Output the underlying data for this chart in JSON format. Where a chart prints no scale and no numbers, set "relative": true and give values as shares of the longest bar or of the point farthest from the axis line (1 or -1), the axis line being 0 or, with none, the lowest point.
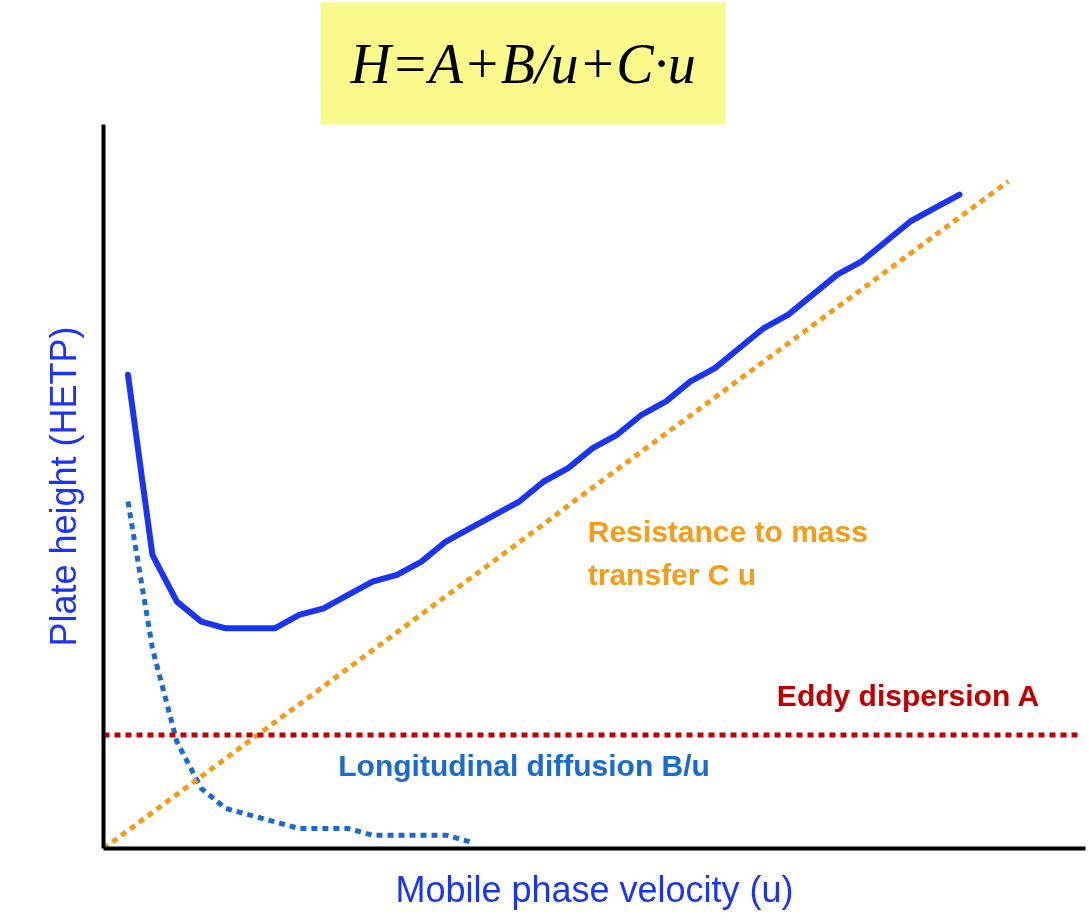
{
  "chart_data": {
    "type": "line",
    "title": "H=A+B/u+C·u",
    "xlabel": "Mobile phase velocity (u)",
    "ylabel": "Plate height (HETP)",
    "relative": true,
    "grid": false,
    "legend": false,
    "categories": [
      null,
      null,
      null,
      null,
      null,
      null,
      null,
      null,
      null,
      null,
      null,
      null,
      null,
      null,
      null,
      null,
      null,
      null,
      null,
      null,
      null,
      null,
      null,
      null,
      null,
      null,
      null,
      null,
      null,
      null,
      null,
      null,
      null,
      null,
      null,
      null,
      null,
      null,
      null,
      null,
      null
    ],
    "series": [
      {
        "color": "#1a35f0",
        "line_style": "solid",
        "values": [
          null,
          0.71,
          0.44,
          0.37,
          0.34,
          0.33,
          0.33,
          0.33,
          0.35,
          0.36,
          0.38,
          0.4,
          0.41,
          0.43,
          0.46,
          0.48,
          0.5,
          0.52,
          0.55,
          0.57,
          0.6,
          0.62,
          0.65,
          0.67,
          0.7,
          0.72,
          0.75,
          0.78,
          0.8,
          0.83,
          0.86,
          0.88,
          0.91,
          0.94,
          0.96,
          0.98,
          null,
          null,
          null,
          null,
          null
        ]
      },
      {
        "name": "Longitudinal diffusion B/u",
        "color": "#1a6bd0",
        "line_style": "dotted",
        "values": [
          null,
          0.52,
          0.3,
          0.16,
          0.09,
          0.06,
          0.05,
          0.04,
          0.03,
          0.03,
          0.03,
          0.02,
          0.02,
          0.02,
          0.02,
          0.01,
          null,
          null,
          null,
          null,
          null,
          null,
          null,
          null,
          null,
          null,
          null,
          null,
          null,
          null,
          null,
          null,
          null,
          null,
          null,
          null,
          null,
          null,
          null,
          null,
          null
        ]
      },
      {
        "name": "Resistance to mass transfer C u",
        "color": "#f59c18",
        "line_style": "dotted",
        "values": [
          0,
          0.027,
          0.054,
          0.081,
          0.108,
          0.135,
          0.162,
          0.189,
          0.216,
          0.243,
          0.27,
          0.297,
          0.324,
          0.351,
          0.378,
          0.405,
          0.432,
          0.459,
          0.486,
          0.514,
          0.541,
          0.568,
          0.595,
          0.622,
          0.649,
          0.676,
          0.703,
          0.73,
          0.757,
          0.784,
          0.811,
          0.838,
          0.865,
          0.892,
          0.919,
          0.946,
          0.973,
          1,
          null,
          null,
          null
        ]
      },
      {
        "name": "Eddy dispersion A",
        "color": "#c00000",
        "line_style": "dotted",
        "values": [
          0.17,
          0.17,
          0.17,
          0.17,
          0.17,
          0.17,
          0.17,
          0.17,
          0.17,
          0.17,
          0.17,
          0.17,
          0.17,
          0.17,
          0.17,
          0.17,
          0.17,
          0.17,
          0.17,
          0.17,
          0.17,
          0.17,
          0.17,
          0.17,
          0.17,
          0.17,
          0.17,
          0.17,
          0.17,
          0.17,
          0.17,
          0.17,
          0.17,
          0.17,
          0.17,
          0.17,
          0.17,
          0.17,
          0.17,
          0.17,
          0.17
        ]
      }
    ]
  }
}
